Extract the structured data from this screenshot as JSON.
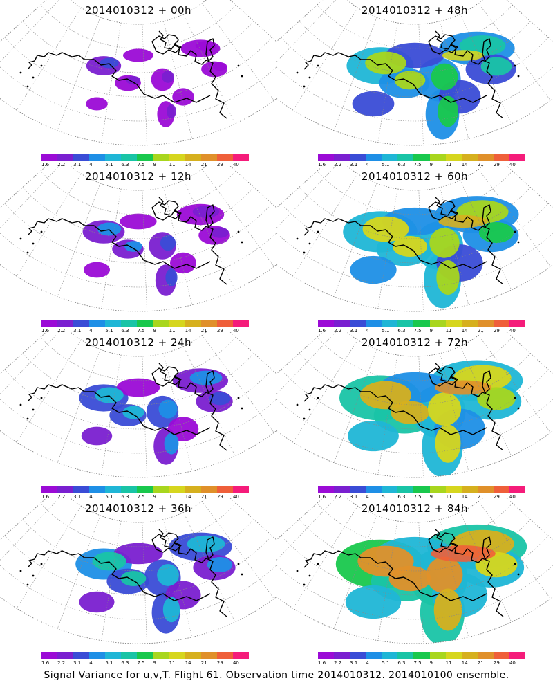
{
  "panels": [
    {
      "title": "2014010312 + 00h",
      "intensity": 0.1
    },
    {
      "title": "2014010312 + 48h",
      "intensity": 0.55
    },
    {
      "title": "2014010312 + 12h",
      "intensity": 0.2
    },
    {
      "title": "2014010312 + 60h",
      "intensity": 0.65
    },
    {
      "title": "2014010312 + 24h",
      "intensity": 0.3
    },
    {
      "title": "2014010312 + 72h",
      "intensity": 0.75
    },
    {
      "title": "2014010312 + 36h",
      "intensity": 0.4
    },
    {
      "title": "2014010312 + 84h",
      "intensity": 0.85
    }
  ],
  "colorbar": {
    "ticks": [
      "1.6",
      "2.2",
      "3.1",
      "4",
      "5.1",
      "6.3",
      "7.5",
      "9",
      "11",
      "14",
      "21",
      "29",
      "40"
    ],
    "colors": [
      "#9b0bd6",
      "#7a1fd0",
      "#3a4cd6",
      "#1e8fe6",
      "#1fb6d6",
      "#19c4a6",
      "#19c84d",
      "#a8d61e",
      "#d6d61e",
      "#d6b01e",
      "#e0902a",
      "#ef5f3a",
      "#f51c7a"
    ]
  },
  "footer": "Signal Variance for u,v,T. Flight 61. Observation time 2014010312. 2014010100 ensemble."
}
